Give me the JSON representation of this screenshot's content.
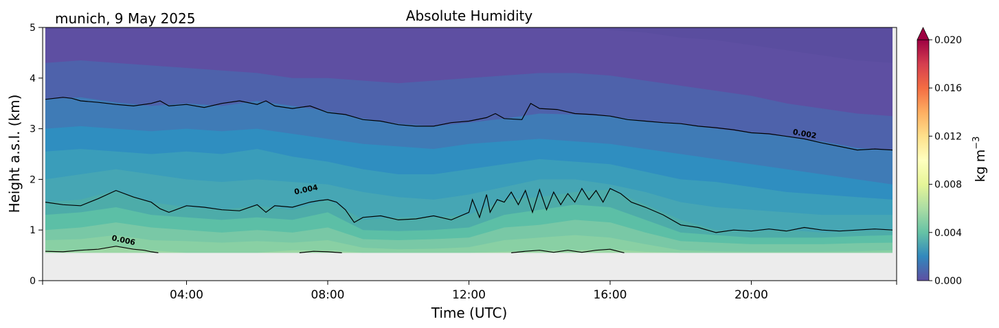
{
  "chart_data": {
    "type": "heatmap",
    "title": "Absolute Humidity",
    "subtitle": "munich, 9 May 2025",
    "xlabel": "Time (UTC)",
    "ylabel": "Height a.s.l. (km)",
    "x_ticks": [
      "04:00",
      "08:00",
      "12:00",
      "16:00",
      "20:00"
    ],
    "y_ticks": [
      "0",
      "1",
      "2",
      "3",
      "4",
      "5"
    ],
    "xlim_hours": [
      0,
      24
    ],
    "ylim_km": [
      0,
      5
    ],
    "data_bottom_km": 0.55,
    "colorbar": {
      "label": "kg m⁻³",
      "label_base": "kg m",
      "label_exp": "−3",
      "ticks": [
        "0.000",
        "0.004",
        "0.008",
        "0.012",
        "0.016",
        "0.020"
      ],
      "range": [
        0.0,
        0.02
      ],
      "extend": "max",
      "colormap": "Spectral_r"
    },
    "level_bands": [
      {
        "level": 0.001,
        "color": "#5e4fa2"
      },
      {
        "level": 0.0015,
        "color": "#4e62ab"
      },
      {
        "level": 0.002,
        "color": "#3f7bb6"
      },
      {
        "level": 0.0025,
        "color": "#2f8ec0"
      },
      {
        "level": 0.003,
        "color": "#3a9dba"
      },
      {
        "level": 0.0035,
        "color": "#46a6b4"
      },
      {
        "level": 0.004,
        "color": "#4daca9"
      },
      {
        "level": 0.0045,
        "color": "#5cbfa6"
      },
      {
        "level": 0.005,
        "color": "#79c8a6"
      },
      {
        "level": 0.0055,
        "color": "#89d0a4"
      },
      {
        "level": 0.006,
        "color": "#9dd7a5"
      }
    ],
    "isolines_km": {
      "hours": [
        0,
        1,
        2,
        3,
        4,
        5,
        6,
        7,
        8,
        9,
        10,
        11,
        12,
        13,
        14,
        15,
        16,
        17,
        18,
        19,
        20,
        21,
        22,
        23,
        24
      ],
      "h_0010": [
        4.95,
        5.0,
        5.0,
        5.0,
        5.0,
        5.0,
        5.0,
        5.0,
        5.0,
        5.0,
        5.0,
        5.0,
        5.0,
        5.0,
        5.0,
        5.0,
        4.95,
        4.9,
        4.8,
        4.75,
        4.65,
        4.55,
        4.45,
        4.35,
        4.3
      ],
      "h_0015": [
        4.3,
        4.35,
        4.3,
        4.25,
        4.2,
        4.15,
        4.1,
        4.0,
        4.0,
        3.95,
        3.9,
        3.95,
        4.0,
        4.05,
        4.1,
        4.1,
        4.05,
        3.95,
        3.85,
        3.75,
        3.65,
        3.5,
        3.4,
        3.3,
        3.25
      ],
      "h_0020": [
        3.58,
        3.62,
        3.52,
        3.45,
        3.5,
        3.45,
        3.55,
        3.45,
        3.35,
        3.2,
        3.1,
        3.05,
        3.12,
        3.2,
        3.3,
        3.28,
        3.25,
        3.15,
        3.1,
        3.0,
        2.92,
        2.85,
        2.75,
        2.62,
        2.58
      ],
      "h_0025": [
        3.0,
        3.05,
        3.0,
        2.95,
        3.0,
        2.95,
        3.0,
        2.9,
        2.8,
        2.7,
        2.65,
        2.6,
        2.7,
        2.75,
        2.8,
        2.75,
        2.7,
        2.6,
        2.5,
        2.4,
        2.3,
        2.2,
        2.1,
        2.0,
        1.9
      ],
      "h_0030": [
        2.55,
        2.6,
        2.55,
        2.5,
        2.55,
        2.5,
        2.6,
        2.45,
        2.35,
        2.2,
        2.1,
        2.1,
        2.2,
        2.3,
        2.4,
        2.35,
        2.3,
        2.15,
        2.0,
        1.95,
        1.85,
        1.75,
        1.7,
        1.65,
        1.6
      ],
      "h_0035": [
        2.0,
        2.1,
        2.2,
        2.1,
        2.0,
        1.95,
        2.0,
        1.95,
        1.9,
        1.75,
        1.65,
        1.6,
        1.7,
        1.85,
        2.0,
        2.0,
        1.9,
        1.75,
        1.55,
        1.45,
        1.4,
        1.35,
        1.3,
        1.3,
        1.3
      ],
      "h_0040": [
        1.55,
        1.6,
        1.78,
        1.55,
        1.45,
        1.4,
        1.48,
        1.4,
        1.6,
        1.2,
        1.25,
        1.25,
        1.3,
        1.6,
        1.65,
        1.75,
        1.8,
        1.5,
        1.2,
        1.0,
        0.98,
        1.0,
        0.95,
        0.98,
        1.0
      ],
      "h_0045": [
        1.3,
        1.35,
        1.45,
        1.3,
        1.25,
        1.2,
        1.25,
        1.2,
        1.35,
        1.0,
        0.98,
        1.0,
        1.05,
        1.3,
        1.4,
        1.5,
        1.45,
        1.2,
        0.95,
        0.9,
        0.85,
        0.85,
        0.85,
        0.88,
        0.9
      ],
      "h_0050": [
        1.0,
        1.05,
        1.15,
        1.05,
        1.0,
        0.95,
        1.0,
        0.95,
        1.05,
        0.82,
        0.8,
        0.82,
        0.85,
        1.05,
        1.1,
        1.2,
        1.15,
        0.95,
        0.78,
        0.75,
        0.72,
        0.72,
        0.72,
        0.74,
        0.75
      ],
      "h_0055": [
        0.8,
        0.82,
        0.9,
        0.8,
        0.78,
        0.75,
        0.78,
        0.75,
        0.8,
        0.65,
        0.62,
        0.63,
        0.66,
        0.8,
        0.85,
        0.9,
        0.85,
        0.72,
        0.6,
        0.58,
        0.57,
        0.57,
        0.57,
        0.58,
        0.6
      ],
      "h_0060": [
        0.6,
        0.6,
        0.68,
        0.6,
        0.55,
        0.55,
        0.55,
        0.6,
        0.6,
        0.55,
        0.55,
        0.55,
        0.55,
        0.57,
        0.6,
        0.6,
        0.62,
        0.57,
        0.55,
        0.55,
        0.55,
        0.55,
        0.55,
        0.55,
        0.55
      ]
    },
    "contours": [
      {
        "label": "0.002",
        "label_at_hour": 21.5,
        "label_at_km": 2.85,
        "hours": [
          0,
          0.25,
          0.5,
          0.75,
          1,
          1.5,
          2,
          2.5,
          3,
          3.25,
          3.5,
          4,
          4.5,
          5,
          5.5,
          6,
          6.25,
          6.5,
          7,
          7.5,
          8,
          8.5,
          9,
          9.5,
          10,
          10.5,
          11,
          11.5,
          12,
          12.5,
          12.75,
          13,
          13.5,
          13.75,
          14,
          14.5,
          15,
          15.5,
          16,
          16.5,
          17,
          17.5,
          18,
          18.5,
          19,
          19.5,
          20,
          20.5,
          21,
          21.5,
          22,
          22.5,
          23,
          23.5,
          24
        ],
        "km": [
          3.58,
          3.6,
          3.62,
          3.6,
          3.55,
          3.52,
          3.48,
          3.45,
          3.5,
          3.55,
          3.45,
          3.48,
          3.42,
          3.5,
          3.55,
          3.48,
          3.55,
          3.45,
          3.4,
          3.45,
          3.32,
          3.28,
          3.18,
          3.15,
          3.08,
          3.05,
          3.05,
          3.12,
          3.15,
          3.22,
          3.3,
          3.2,
          3.18,
          3.5,
          3.4,
          3.38,
          3.3,
          3.28,
          3.25,
          3.18,
          3.15,
          3.12,
          3.1,
          3.05,
          3.02,
          2.98,
          2.92,
          2.9,
          2.85,
          2.8,
          2.72,
          2.65,
          2.58,
          2.6,
          2.58
        ]
      },
      {
        "label": "0.004",
        "label_at_hour": 7.4,
        "label_at_km": 1.75,
        "hours": [
          0,
          0.5,
          1,
          1.5,
          2,
          2.5,
          3,
          3.25,
          3.5,
          4,
          4.5,
          5,
          5.5,
          6,
          6.25,
          6.5,
          7,
          7.5,
          7.75,
          8,
          8.25,
          8.5,
          8.75,
          9,
          9.5,
          10,
          10.5,
          11,
          11.5,
          12,
          12.1,
          12.3,
          12.5,
          12.6,
          12.8,
          13,
          13.2,
          13.4,
          13.6,
          13.8,
          14,
          14.2,
          14.4,
          14.6,
          14.8,
          15,
          15.2,
          15.4,
          15.6,
          15.8,
          16,
          16.3,
          16.6,
          17,
          17.5,
          18,
          18.5,
          19,
          19.5,
          20,
          20.5,
          21,
          21.5,
          22,
          22.5,
          23,
          23.5,
          24
        ],
        "km": [
          1.55,
          1.5,
          1.48,
          1.62,
          1.78,
          1.65,
          1.55,
          1.42,
          1.35,
          1.48,
          1.45,
          1.4,
          1.38,
          1.5,
          1.35,
          1.48,
          1.45,
          1.55,
          1.58,
          1.6,
          1.55,
          1.4,
          1.15,
          1.25,
          1.28,
          1.2,
          1.22,
          1.28,
          1.2,
          1.35,
          1.6,
          1.25,
          1.7,
          1.35,
          1.6,
          1.55,
          1.75,
          1.5,
          1.78,
          1.35,
          1.8,
          1.4,
          1.75,
          1.5,
          1.72,
          1.55,
          1.82,
          1.6,
          1.78,
          1.55,
          1.82,
          1.72,
          1.55,
          1.45,
          1.3,
          1.1,
          1.05,
          0.95,
          1.0,
          0.98,
          1.02,
          0.98,
          1.05,
          1.0,
          0.98,
          1.0,
          1.02,
          1.0
        ]
      },
      {
        "label": "0.006",
        "label_at_hour": 2.2,
        "label_at_km": 0.75,
        "hours": [
          0,
          0.5,
          1,
          1.5,
          2,
          2.5,
          2.8,
          3.0,
          3.2
        ],
        "km": [
          0.58,
          0.57,
          0.6,
          0.62,
          0.68,
          0.62,
          0.6,
          0.57,
          0.55
        ]
      },
      {
        "label": "",
        "hours": [
          7.2,
          7.6,
          8.0,
          8.4
        ],
        "km": [
          0.55,
          0.58,
          0.57,
          0.55
        ]
      },
      {
        "label": "",
        "hours": [
          13.2,
          13.6,
          14.0,
          14.4,
          14.8,
          15.2,
          15.6,
          16.0,
          16.4
        ],
        "km": [
          0.55,
          0.58,
          0.6,
          0.56,
          0.6,
          0.56,
          0.6,
          0.62,
          0.55
        ]
      }
    ]
  },
  "colors": {
    "ground": "#ececec",
    "contour": "#000000"
  }
}
